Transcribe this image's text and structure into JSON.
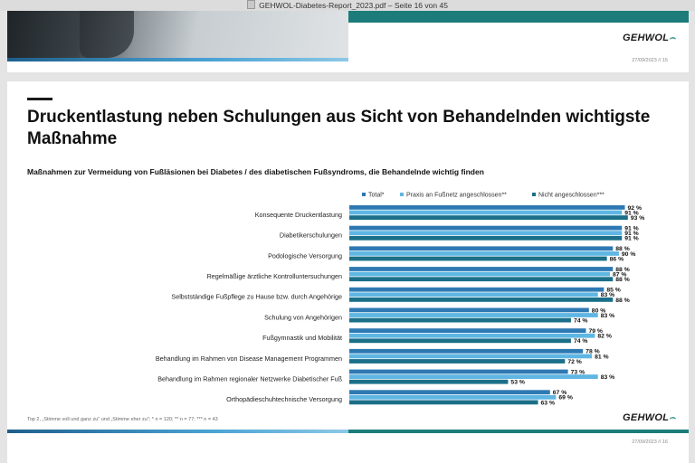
{
  "window": {
    "title": "GEHWOL-Diabetes-Report_2023.pdf – Seite 16 von 45"
  },
  "prev_page": {
    "logo": "GEHWOL",
    "date": "27/09/2023 // 15"
  },
  "page": {
    "title": "Druckentlastung neben Schulungen aus Sicht von Behandelnden wichtigste Maßnahme",
    "subtitle": "Maßnahmen zur Vermeidung von Fußläsionen bei Diabetes / des diabetischen Fußsyndroms, die Behandelnde wichtig finden",
    "footnote": "Top 2, „Stimme voll und ganz zu\" und „Stimme eher zu\"; * n = 120; ** n = 77; *** n = 43",
    "logo": "GEHWOL",
    "date": "27/09/2023 // 16"
  },
  "chart_data": {
    "type": "bar",
    "orientation": "horizontal",
    "categories": [
      "Konsequente Druckentlastung",
      "Diabetikerschulungen",
      "Podologische Versorgung",
      "Regelmäßige ärztliche Kontrolluntersuchungen",
      "Selbstständige Fußpflege zu Hause bzw. durch Angehörige",
      "Schulung von Angehörigen",
      "Fußgymnastik und Mobilität",
      "Behandlung im Rahmen von Disease Management Programmen",
      "Behandlung im Rahmen regionaler Netzwerke Diabetischer Fuß",
      "Orthopädieschuhtechnische Versorgung"
    ],
    "series": [
      {
        "name": "Total*",
        "color": "#2e79b3",
        "values": [
          92,
          91,
          88,
          88,
          85,
          80,
          79,
          78,
          73,
          67
        ]
      },
      {
        "name": "Praxis an Fußnetz angeschlossen**",
        "color": "#5fb6e3",
        "values": [
          91,
          91,
          90,
          87,
          83,
          83,
          82,
          81,
          83,
          69
        ]
      },
      {
        "name": "Nicht angeschlossen***",
        "color": "#1b6f88",
        "values": [
          93,
          91,
          86,
          88,
          88,
          74,
          74,
          72,
          53,
          63
        ]
      }
    ],
    "value_suffix": " %",
    "xlim": [
      0,
      100
    ],
    "legend_position": "top"
  }
}
